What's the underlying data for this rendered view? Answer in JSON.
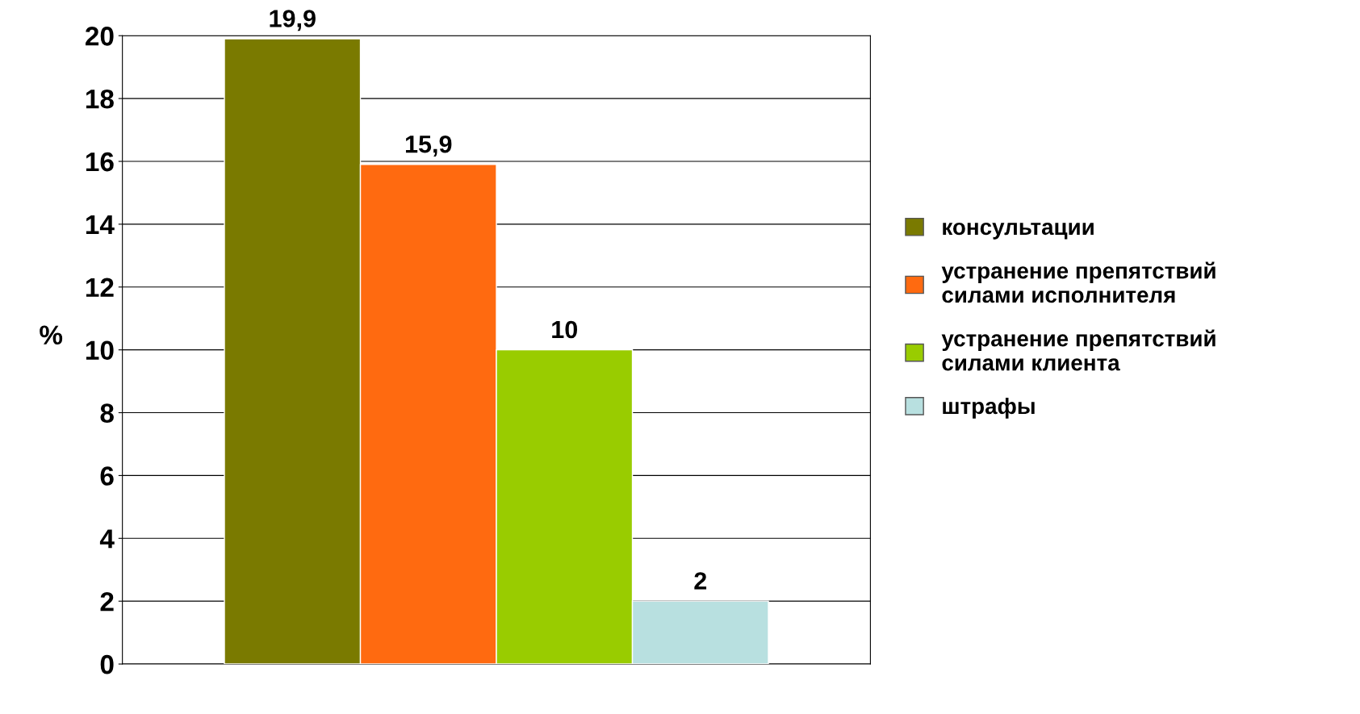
{
  "chart_data": {
    "type": "bar",
    "ylabel": "%",
    "categories": [
      null
    ],
    "series": [
      {
        "name": "консультации",
        "color": "#7a7a00",
        "values": [
          19.9
        ],
        "value_labels": [
          "19,9"
        ]
      },
      {
        "name": "устранение препятствий\nсилами исполнителя",
        "color": "#ff6a10",
        "values": [
          15.9
        ],
        "value_labels": [
          "15,9"
        ]
      },
      {
        "name": "устранение препятствий\nсилами клиента",
        "color": "#99cc00",
        "values": [
          10
        ],
        "value_labels": [
          "10"
        ]
      },
      {
        "name": "штрафы",
        "color": "#b8e0e0",
        "values": [
          2
        ],
        "value_labels": [
          "2"
        ]
      }
    ],
    "ylim": [
      0,
      20
    ],
    "yticks": [
      0,
      2,
      4,
      6,
      8,
      10,
      12,
      14,
      16,
      18,
      20
    ],
    "grid": "y",
    "legend": "right"
  }
}
